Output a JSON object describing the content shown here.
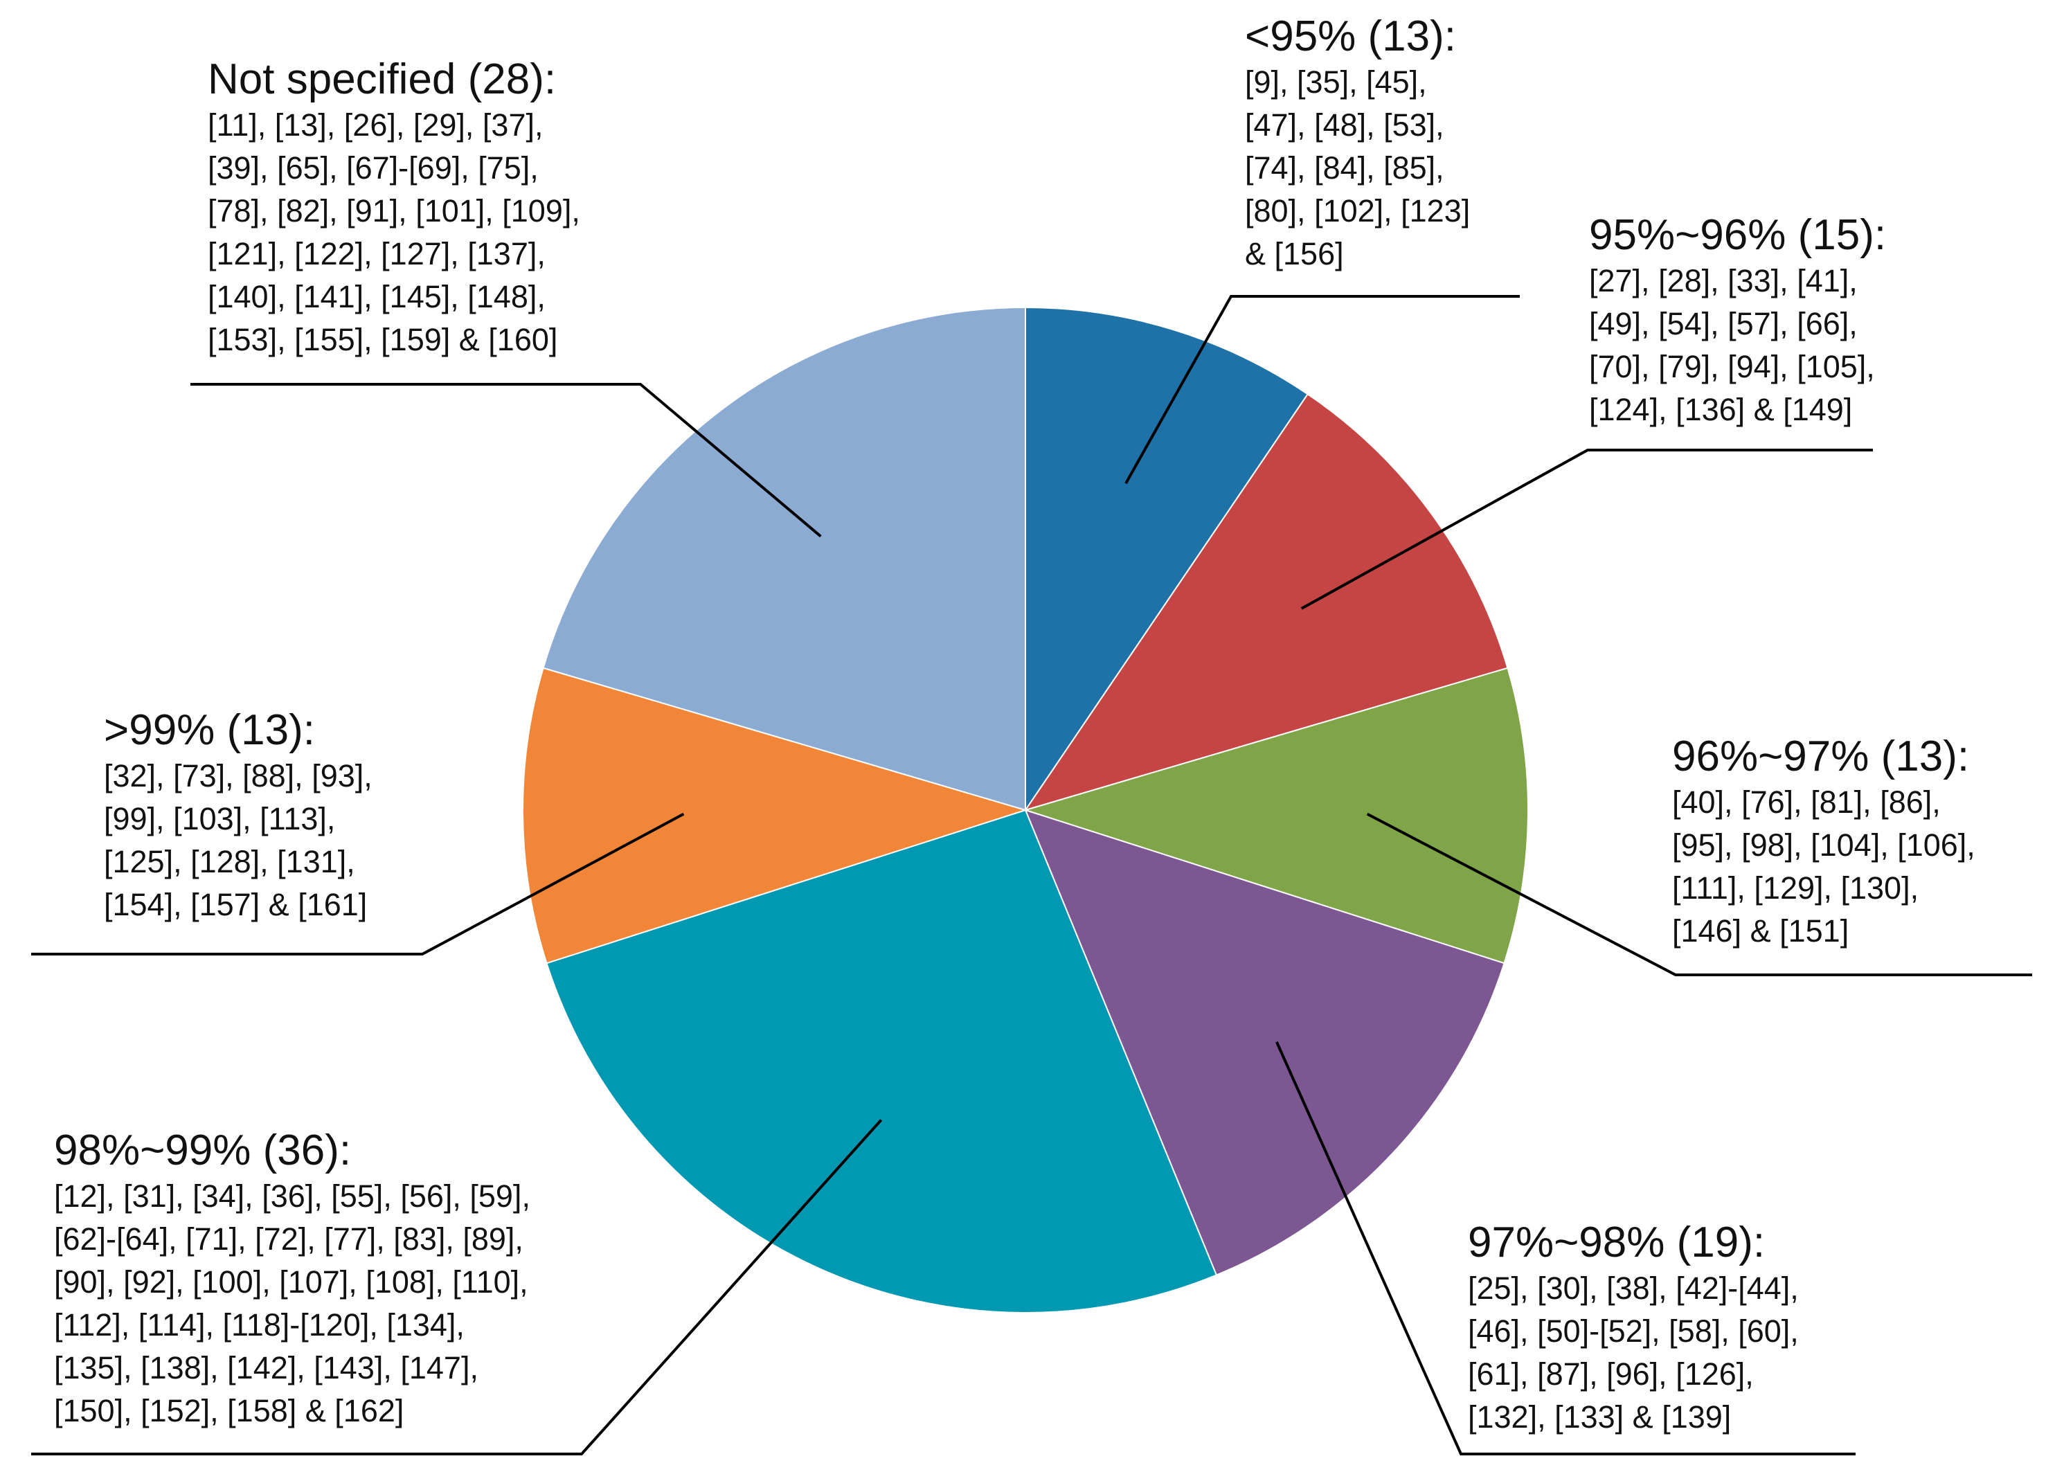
{
  "chart_data": {
    "type": "pie",
    "title": "",
    "start_angle_deg": 0,
    "direction": "clockwise",
    "slices": [
      {
        "id": "lt95",
        "title": "<95% (13):",
        "category": "<95%",
        "value": 13,
        "color": "#1F72A8",
        "ref_lines": [
          "[9], [35], [45],",
          "[47], [48], [53],",
          "[74], [84], [85],",
          "[80], [102], [123]",
          "& [156]"
        ]
      },
      {
        "id": "95to96",
        "title": "95%~96% (15):",
        "category": "95%~96%",
        "value": 15,
        "color": "#C44543",
        "ref_lines": [
          "[27], [28], [33], [41],",
          "[49], [54], [57], [66],",
          "[70], [79], [94], [105],",
          "[124], [136] & [149]"
        ]
      },
      {
        "id": "96to97",
        "title": "96%~97% (13):",
        "category": "96%~97%",
        "value": 13,
        "color": "#7FA548",
        "ref_lines": [
          "[40], [76], [81], [86],",
          "[95], [98], [104], [106],",
          "[111], [129], [130],",
          "[146] & [151]"
        ]
      },
      {
        "id": "97to98",
        "title": "97%~98% (19):",
        "category": "97%~98%",
        "value": 19,
        "color": "#7D5792",
        "ref_lines": [
          "[25], [30], [38], [42]-[44],",
          "[46], [50]-[52], [58], [60],",
          "[61], [87], [96], [126],",
          "[132], [133] & [139]"
        ]
      },
      {
        "id": "98to99",
        "title": "98%~99% (36):",
        "category": "98%~99%",
        "value": 36,
        "color": "#0099B1",
        "ref_lines": [
          "[12], [31], [34], [36], [55], [56], [59],",
          "[62]-[64], [71], [72], [77], [83], [89],",
          "[90], [92], [100], [107], [108], [110],",
          "[112], [114], [118]-[120], [134],",
          "[135], [138], [142], [143], [147],",
          "[150], [152], [158] & [162]"
        ]
      },
      {
        "id": "gt99",
        "title": ">99% (13):",
        "category": ">99%",
        "value": 13,
        "color": "#F28638",
        "ref_lines": [
          "[32], [73], [88], [93],",
          "[99], [103], [113],",
          "[125], [128], [131],",
          "[154], [157] & [161]"
        ]
      },
      {
        "id": "notspec",
        "title": "Not specified (28):",
        "category": "Not specified",
        "value": 28,
        "color": "#8CABD3",
        "ref_lines": [
          "[11], [13], [26], [29], [37],",
          "[39], [65], [67]-[69], [75],",
          "[78], [82], [91], [101], [109],",
          "[121], [122], [127], [137],",
          "[140], [141], [145], [148],",
          "[153], [155], [159] & [160]"
        ]
      }
    ]
  }
}
